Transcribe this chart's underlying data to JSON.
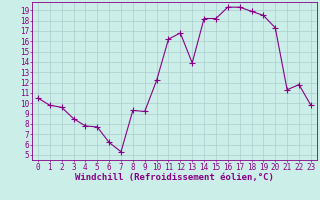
{
  "x": [
    0,
    1,
    2,
    3,
    4,
    5,
    6,
    7,
    8,
    9,
    10,
    11,
    12,
    13,
    14,
    15,
    16,
    17,
    18,
    19,
    20,
    21,
    22,
    23
  ],
  "y": [
    10.5,
    9.8,
    9.6,
    8.5,
    7.8,
    7.7,
    6.2,
    5.3,
    9.3,
    9.2,
    12.2,
    16.2,
    16.8,
    13.9,
    18.2,
    18.2,
    19.3,
    19.3,
    18.9,
    18.5,
    17.3,
    11.3,
    11.8,
    9.8
  ],
  "line_color": "#880088",
  "marker_color": "#880088",
  "bg_color": "#cceee8",
  "grid_color": "#aacccc",
  "xlabel": "Windchill (Refroidissement éolien,°C)",
  "xlim": [
    -0.5,
    23.5
  ],
  "ylim": [
    4.5,
    19.8
  ],
  "xticks": [
    0,
    1,
    2,
    3,
    4,
    5,
    6,
    7,
    8,
    9,
    10,
    11,
    12,
    13,
    14,
    15,
    16,
    17,
    18,
    19,
    20,
    21,
    22,
    23
  ],
  "yticks": [
    5,
    6,
    7,
    8,
    9,
    10,
    11,
    12,
    13,
    14,
    15,
    16,
    17,
    18,
    19
  ],
  "tick_color": "#880088",
  "spine_color": "#880088",
  "font_size_tick": 5.5,
  "font_size_xlabel": 6.5,
  "marker_size": 2.0,
  "line_width": 0.8
}
